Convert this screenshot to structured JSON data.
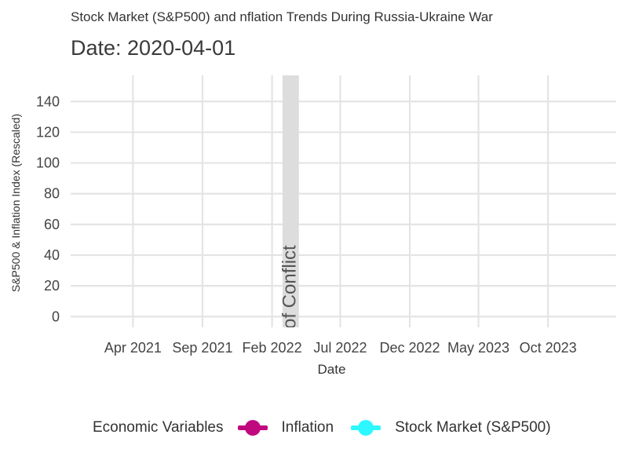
{
  "chart_data": {
    "type": "line",
    "title": "Stock Market (S&P500) and  nflation Trends During Russia-Ukraine War",
    "subtitle": "Date: 2020-04-01",
    "xlabel": "Date",
    "ylabel": "S&P500 & Inflation Index (Rescaled)",
    "ylim": [
      -7,
      157
    ],
    "xlim": [
      "2020-11-15",
      "2024-02-28"
    ],
    "y_ticks": [
      0,
      20,
      40,
      60,
      80,
      100,
      120,
      140
    ],
    "x_ticks": [
      {
        "date": "2021-04-01",
        "label": "Apr 2021"
      },
      {
        "date": "2021-09-01",
        "label": "Sep 2021"
      },
      {
        "date": "2022-02-01",
        "label": "Feb 2022"
      },
      {
        "date": "2022-07-01",
        "label": "Jul 2022"
      },
      {
        "date": "2022-12-01",
        "label": "Dec 2022"
      },
      {
        "date": "2023-05-01",
        "label": "May 2023"
      },
      {
        "date": "2023-10-01",
        "label": "Oct 2023"
      }
    ],
    "shaded_region": {
      "start": "2022-02-24",
      "end": "2022-04-01",
      "label": "Start of Conflict",
      "label_visible": "of Conflict",
      "color": "#dddddd"
    },
    "grid": true,
    "legend_position": "bottom",
    "series": [
      {
        "name": "Inflation",
        "color": "#c0097f",
        "values": []
      },
      {
        "name": "Stock Market (S&P500)",
        "color": "#2ef8ff",
        "values": []
      }
    ]
  },
  "legend": {
    "title": "Economic Variables",
    "items": [
      {
        "label": "Inflation",
        "color": "#c0097f"
      },
      {
        "label": "Stock Market (S&P500)",
        "color": "#2ef8ff"
      }
    ]
  }
}
